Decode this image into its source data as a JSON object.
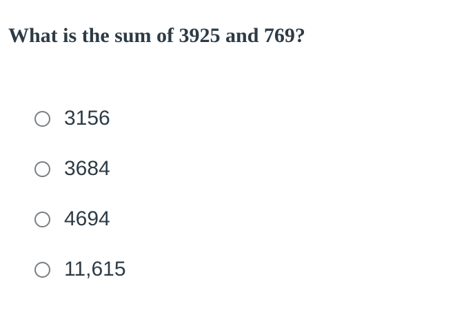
{
  "question": {
    "title": "What is the sum of 3925 and 769?"
  },
  "options": [
    {
      "label": "3156",
      "selected": false
    },
    {
      "label": "3684",
      "selected": false
    },
    {
      "label": "4694",
      "selected": false
    },
    {
      "label": "11,615",
      "selected": false
    }
  ],
  "colors": {
    "background": "#ffffff",
    "text": "#2d3b45",
    "radio_border": "#777e83"
  }
}
